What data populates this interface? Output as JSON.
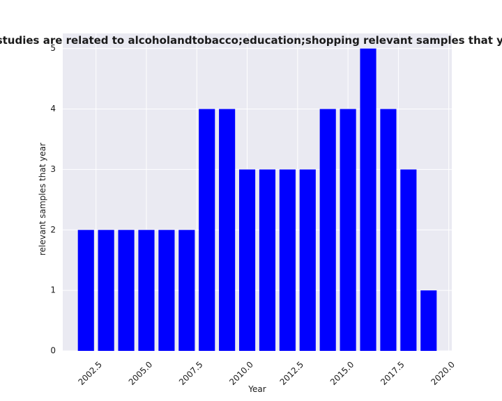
{
  "chart_data": {
    "type": "bar",
    "title": "Number of studies are related to alcoholandtobacco;education;shopping relevant samples that year in privacy",
    "xlabel": "Year",
    "ylabel": "relevant samples that year",
    "x": [
      2002,
      2003,
      2004,
      2005,
      2006,
      2007,
      2008,
      2009,
      2010,
      2011,
      2012,
      2013,
      2014,
      2015,
      2016,
      2017,
      2018,
      2019
    ],
    "values": [
      2,
      2,
      2,
      2,
      2,
      2,
      4,
      4,
      3,
      3,
      3,
      3,
      4,
      4,
      5,
      4,
      3,
      1
    ],
    "xticks": [
      "2002.5",
      "2005.0",
      "2007.5",
      "2010.0",
      "2012.5",
      "2015.0",
      "2017.5",
      "2020.0"
    ],
    "yticks": [
      "0",
      "1",
      "2",
      "3",
      "4",
      "5"
    ],
    "xlim": [
      2000.85,
      2020.15
    ],
    "ylim": [
      0,
      5.25
    ],
    "grid": true,
    "bar_color": "#0000ff",
    "plot_background": "#eaeaf2",
    "grid_color": "#ffffff"
  }
}
